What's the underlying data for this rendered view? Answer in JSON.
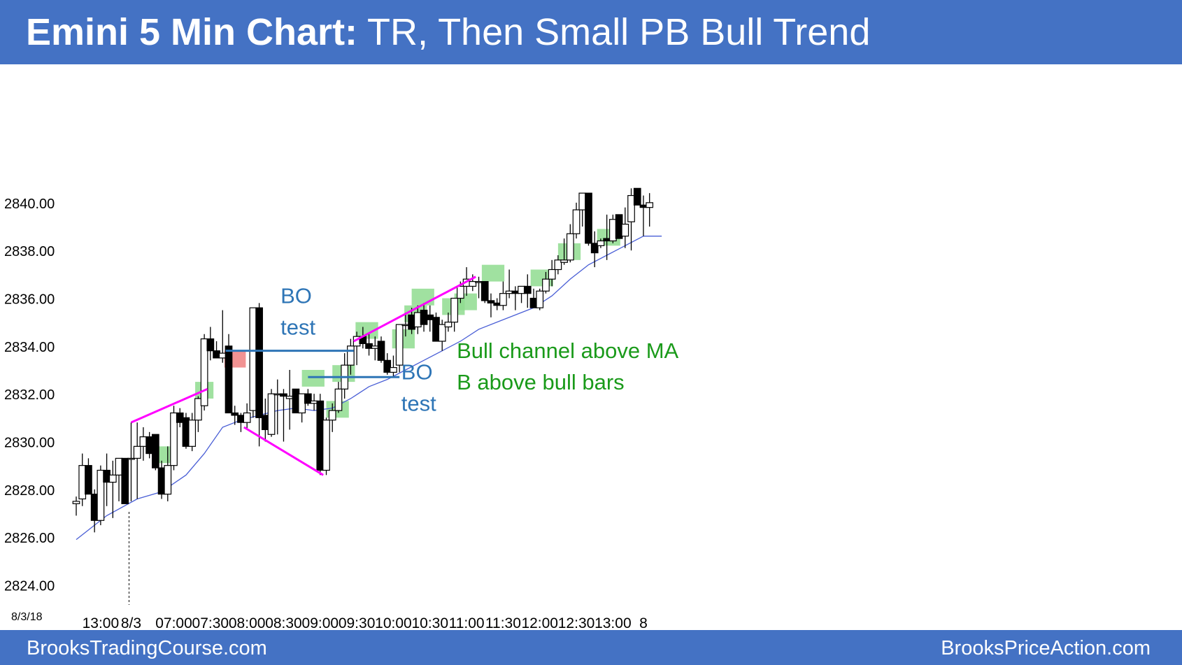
{
  "header": {
    "title_bold": "Emini 5 Min Chart:",
    "title_rest": " TR, Then Small PB Bull Trend"
  },
  "footer": {
    "left": "BrooksTradingCourse.com",
    "right": "BrooksPriceAction.com"
  },
  "colors": {
    "header_bg": "#4472c4",
    "bull_signal": "#8fdc8f",
    "bear_signal": "#f08080",
    "trendline": "#ff00ff",
    "level_line": "#2e75b6",
    "moving_average": "#4a5fd6",
    "annotation_blue": "#2e75b6",
    "annotation_green": "#1a9a1a"
  },
  "chart_data": {
    "type": "candlestick",
    "ylim": [
      2823.4,
      2841.4
    ],
    "ytick_values": [
      2824,
      2826,
      2828,
      2830,
      2832,
      2834,
      2836,
      2838,
      2840
    ],
    "ytick_labels": [
      "2824.00",
      "2826.00",
      "2828.00",
      "2830.00",
      "2832.00",
      "2834.00",
      "2836.00",
      "2838.00",
      "2840.00"
    ],
    "date_label": "8/3/18",
    "xtick_labels": [
      "13:00",
      "8/3",
      "07:00",
      "07:30",
      "08:00",
      "08:30",
      "09:00",
      "09:30",
      "10:00",
      "10:30",
      "11:00",
      "11:30",
      "12:00",
      "12:30",
      "13:00",
      "8"
    ],
    "xtick_bar_index": [
      4,
      9,
      16,
      22,
      28,
      34,
      40,
      46,
      52,
      58,
      64,
      70,
      76,
      82,
      88,
      93
    ],
    "day_separator_bar": 9,
    "bars_ohlc": [
      [
        2827.4,
        2827.7,
        2826.9,
        2827.5
      ],
      [
        2827.6,
        2829.5,
        2827.3,
        2829.0
      ],
      [
        2829.0,
        2829.3,
        2827.8,
        2827.8
      ],
      [
        2827.8,
        2828.0,
        2826.2,
        2826.7
      ],
      [
        2826.7,
        2829.0,
        2826.5,
        2828.8
      ],
      [
        2828.8,
        2829.5,
        2827.3,
        2828.3
      ],
      [
        2828.3,
        2829.2,
        2826.8,
        2828.6
      ],
      [
        2828.6,
        2829.3,
        2827.5,
        2829.3
      ],
      [
        2829.3,
        2829.3,
        2827.5,
        2827.4
      ],
      [
        2829.3,
        2830.8,
        2827.5,
        2829.3
      ],
      [
        2829.3,
        2830.8,
        2827.6,
        2829.8
      ],
      [
        2829.8,
        2830.6,
        2829.2,
        2830.2
      ],
      [
        2830.2,
        2830.4,
        2829.3,
        2829.5
      ],
      [
        2830.3,
        2830.3,
        2828.8,
        2828.9
      ],
      [
        2828.9,
        2829.2,
        2827.6,
        2827.8
      ],
      [
        2827.8,
        2829.8,
        2827.5,
        2829.0
      ],
      [
        2829.0,
        2831.5,
        2828.8,
        2831.2
      ],
      [
        2831.2,
        2831.4,
        2830.6,
        2830.8
      ],
      [
        2831.0,
        2831.2,
        2829.7,
        2829.8
      ],
      [
        2829.8,
        2831.2,
        2829.6,
        2830.9
      ],
      [
        2830.9,
        2831.9,
        2830.4,
        2831.8
      ],
      [
        2831.5,
        2834.5,
        2831.3,
        2834.3
      ],
      [
        2834.3,
        2834.8,
        2833.4,
        2833.8
      ],
      [
        2833.8,
        2834.2,
        2833.5,
        2833.5
      ],
      [
        2833.5,
        2835.5,
        2833.3,
        2833.7
      ],
      [
        2834.0,
        2834.5,
        2831.2,
        2831.2
      ],
      [
        2831.2,
        2831.5,
        2830.7,
        2831.1
      ],
      [
        2831.1,
        2831.2,
        2830.4,
        2830.8
      ],
      [
        2830.8,
        2831.6,
        2830.5,
        2831.2
      ],
      [
        2831.3,
        2835.6,
        2831.0,
        2835.6
      ],
      [
        2835.6,
        2835.8,
        2829.8,
        2831.0
      ],
      [
        2831.1,
        2831.8,
        2830.0,
        2830.5
      ],
      [
        2830.3,
        2832.2,
        2830.2,
        2832.0
      ],
      [
        2832.0,
        2832.6,
        2830.3,
        2832.0
      ],
      [
        2832.0,
        2832.2,
        2830.0,
        2831.9
      ],
      [
        2831.8,
        2833.0,
        2830.5,
        2831.9
      ],
      [
        2832.2,
        2832.2,
        2831.2,
        2831.2
      ],
      [
        2831.2,
        2832.0,
        2830.8,
        2832.0
      ],
      [
        2832.0,
        2832.2,
        2831.5,
        2831.6
      ],
      [
        2831.6,
        2832.0,
        2831.3,
        2831.7
      ],
      [
        2831.7,
        2832.0,
        2828.6,
        2828.8
      ],
      [
        2828.8,
        2831.0,
        2828.6,
        2830.9
      ],
      [
        2830.9,
        2831.6,
        2830.4,
        2831.3
      ],
      [
        2831.3,
        2832.5,
        2831.2,
        2832.2
      ],
      [
        2832.2,
        2833.7,
        2831.8,
        2833.2
      ],
      [
        2833.2,
        2834.3,
        2832.8,
        2834.0
      ],
      [
        2834.0,
        2834.6,
        2833.2,
        2834.4
      ],
      [
        2834.4,
        2834.8,
        2833.9,
        2834.1
      ],
      [
        2834.1,
        2834.5,
        2833.6,
        2833.9
      ],
      [
        2833.9,
        2834.4,
        2833.4,
        2834.0
      ],
      [
        2834.2,
        2834.4,
        2833.3,
        2833.4
      ],
      [
        2833.4,
        2833.7,
        2832.8,
        2832.9
      ],
      [
        2832.9,
        2833.6,
        2832.7,
        2833.1
      ],
      [
        2833.2,
        2834.9,
        2832.9,
        2834.9
      ],
      [
        2834.9,
        2835.4,
        2834.4,
        2834.9
      ],
      [
        2835.3,
        2835.6,
        2834.5,
        2834.7
      ],
      [
        2834.8,
        2835.7,
        2834.5,
        2835.4
      ],
      [
        2835.5,
        2835.8,
        2834.6,
        2834.9
      ],
      [
        2835.3,
        2835.7,
        2834.6,
        2835.1
      ],
      [
        2835.2,
        2835.4,
        2834.2,
        2834.2
      ],
      [
        2834.2,
        2835.1,
        2833.8,
        2834.9
      ],
      [
        2834.8,
        2835.4,
        2834.6,
        2835.0
      ],
      [
        2835.0,
        2836.0,
        2834.6,
        2836.0
      ],
      [
        2836.0,
        2836.7,
        2835.8,
        2836.5
      ],
      [
        2836.5,
        2837.3,
        2836.1,
        2836.8
      ],
      [
        2836.5,
        2837.0,
        2836.3,
        2836.7
      ],
      [
        2836.7,
        2836.9,
        2836.0,
        2836.7
      ],
      [
        2836.7,
        2836.7,
        2835.8,
        2835.9
      ],
      [
        2835.9,
        2836.2,
        2835.2,
        2835.8
      ],
      [
        2835.8,
        2836.0,
        2835.5,
        2835.7
      ],
      [
        2835.7,
        2836.7,
        2835.5,
        2836.2
      ],
      [
        2836.2,
        2837.2,
        2836.0,
        2836.3
      ],
      [
        2836.3,
        2836.5,
        2835.5,
        2836.2
      ],
      [
        2836.2,
        2836.5,
        2835.8,
        2836.5
      ],
      [
        2836.5,
        2837.0,
        2835.6,
        2836.2
      ],
      [
        2836.0,
        2836.4,
        2835.6,
        2835.6
      ],
      [
        2835.6,
        2836.4,
        2835.5,
        2836.3
      ],
      [
        2836.3,
        2837.1,
        2836.2,
        2836.8
      ],
      [
        2836.8,
        2837.6,
        2836.5,
        2837.2
      ],
      [
        2837.2,
        2837.8,
        2837.0,
        2837.6
      ],
      [
        2837.5,
        2838.5,
        2837.4,
        2837.6
      ],
      [
        2837.6,
        2839.1,
        2837.5,
        2838.7
      ],
      [
        2838.7,
        2840.0,
        2838.5,
        2839.7
      ],
      [
        2839.7,
        2840.4,
        2839.0,
        2840.4
      ],
      [
        2840.4,
        2840.4,
        2838.2,
        2838.3
      ],
      [
        2838.3,
        2838.8,
        2837.3,
        2837.9
      ],
      [
        2838.2,
        2838.5,
        2838.1,
        2838.4
      ],
      [
        2838.5,
        2839.5,
        2837.6,
        2838.4
      ],
      [
        2838.4,
        2839.5,
        2838.3,
        2839.3
      ],
      [
        2839.5,
        2839.5,
        2838.5,
        2838.5
      ],
      [
        2838.6,
        2839.8,
        2838.1,
        2839.1
      ],
      [
        2839.2,
        2840.6,
        2838.0,
        2840.3
      ],
      [
        2840.6,
        2840.6,
        2839.9,
        2839.9
      ],
      [
        2839.9,
        2840.3,
        2838.6,
        2839.8
      ],
      [
        2839.8,
        2840.4,
        2839.0,
        2840.0
      ]
    ],
    "moving_average_start": [
      0,
      2825.9
    ],
    "moving_average": [
      [
        5,
        2826.9
      ],
      [
        10,
        2827.6
      ],
      [
        14,
        2827.9
      ],
      [
        18,
        2828.6
      ],
      [
        21,
        2829.5
      ],
      [
        24,
        2830.6
      ],
      [
        27,
        2830.9
      ],
      [
        30,
        2831.1
      ],
      [
        33,
        2831.3
      ],
      [
        36,
        2831.4
      ],
      [
        39,
        2831.3
      ],
      [
        42,
        2831.4
      ],
      [
        45,
        2831.8
      ],
      [
        48,
        2832.3
      ],
      [
        51,
        2832.6
      ],
      [
        54,
        2833.0
      ],
      [
        57,
        2833.4
      ],
      [
        60,
        2833.8
      ],
      [
        63,
        2834.2
      ],
      [
        66,
        2834.7
      ],
      [
        69,
        2835.0
      ],
      [
        72,
        2835.3
      ],
      [
        75,
        2835.6
      ],
      [
        78,
        2836.1
      ],
      [
        81,
        2836.8
      ],
      [
        84,
        2837.4
      ],
      [
        87,
        2837.8
      ],
      [
        90,
        2838.2
      ],
      [
        93,
        2838.6
      ],
      [
        96,
        2838.6
      ]
    ],
    "signal_boxes": [
      {
        "kind": "bull",
        "bar_from": 13,
        "bar_to": 16.5,
        "y_from": 2829.1,
        "y_to": 2829.8
      },
      {
        "kind": "bull",
        "bar_from": 19.5,
        "bar_to": 22.5,
        "y_from": 2831.8,
        "y_to": 2832.5
      },
      {
        "kind": "bear",
        "bar_from": 24.3,
        "bar_to": 27.8,
        "y_from": 2833.1,
        "y_to": 2833.8
      },
      {
        "kind": "bull",
        "bar_from": 37,
        "bar_to": 40.7,
        "y_from": 2832.3,
        "y_to": 2833.0
      },
      {
        "kind": "bull",
        "bar_from": 41,
        "bar_to": 44.7,
        "y_from": 2831.0,
        "y_to": 2831.7
      },
      {
        "kind": "bull",
        "bar_from": 42,
        "bar_to": 45.7,
        "y_from": 2832.5,
        "y_to": 2833.2
      },
      {
        "kind": "bull",
        "bar_from": 45.8,
        "bar_to": 49.5,
        "y_from": 2834.3,
        "y_to": 2835.0
      },
      {
        "kind": "bull",
        "bar_from": 51.8,
        "bar_to": 55.5,
        "y_from": 2833.9,
        "y_to": 2834.7
      },
      {
        "kind": "bull",
        "bar_from": 53.8,
        "bar_to": 57.5,
        "y_from": 2835.0,
        "y_to": 2835.7
      },
      {
        "kind": "bull",
        "bar_from": 55,
        "bar_to": 58.7,
        "y_from": 2835.7,
        "y_to": 2836.4
      },
      {
        "kind": "bull",
        "bar_from": 60,
        "bar_to": 63.7,
        "y_from": 2835.3,
        "y_to": 2836.0
      },
      {
        "kind": "bull",
        "bar_from": 62,
        "bar_to": 65.7,
        "y_from": 2835.5,
        "y_to": 2836.2
      },
      {
        "kind": "bull",
        "bar_from": 66.5,
        "bar_to": 70.2,
        "y_from": 2836.7,
        "y_to": 2837.4
      },
      {
        "kind": "bull",
        "bar_from": 74.5,
        "bar_to": 78.2,
        "y_from": 2836.5,
        "y_to": 2837.2
      },
      {
        "kind": "bull",
        "bar_from": 79,
        "bar_to": 82.7,
        "y_from": 2837.6,
        "y_to": 2838.3
      },
      {
        "kind": "bull",
        "bar_from": 85.4,
        "bar_to": 89.2,
        "y_from": 2838.2,
        "y_to": 2838.9
      }
    ],
    "trend_lines": [
      {
        "bar_from": 9,
        "y_from": 2830.8,
        "bar_to": 21.5,
        "y_to": 2832.2
      },
      {
        "bar_from": 27.5,
        "y_from": 2830.6,
        "bar_to": 40.5,
        "y_to": 2828.6
      },
      {
        "bar_from": 45.5,
        "y_from": 2834.2,
        "bar_to": 65.5,
        "y_to": 2836.9
      }
    ],
    "level_lines": [
      {
        "bar_from": 24.5,
        "bar_to": 45.5,
        "y": 2833.8
      },
      {
        "bar_from": 38,
        "bar_to": 53,
        "y": 2832.7
      }
    ],
    "annotations": [
      {
        "text_lines": [
          "BO",
          "test"
        ],
        "color": "blue",
        "bar": 33.5,
        "y": 2835.8
      },
      {
        "text_lines": [
          "BO",
          "test"
        ],
        "color": "blue",
        "bar": 53.3,
        "y": 2832.6
      },
      {
        "text_lines": [
          "Bull channel above MA",
          "B above bull bars"
        ],
        "color": "green",
        "bar": 62.4,
        "y": 2833.5
      }
    ]
  }
}
